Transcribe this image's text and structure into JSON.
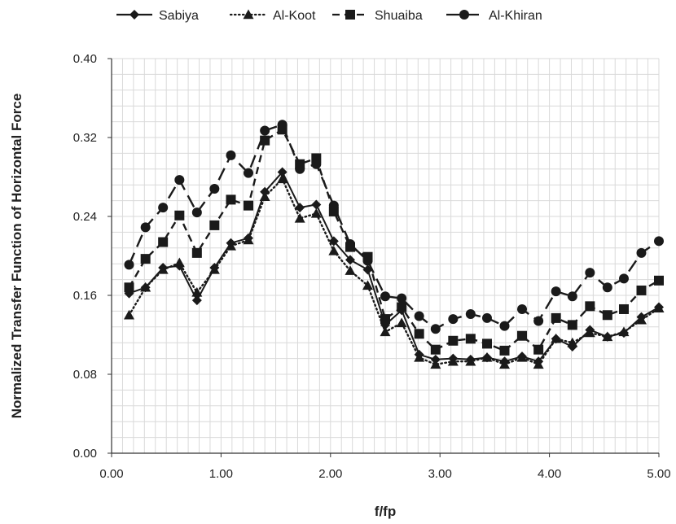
{
  "chart_data": {
    "type": "line",
    "title": "",
    "xlabel": "f/fp",
    "ylabel": "Normalized Transfer Function of Horizontal Force",
    "xlim": [
      0,
      5
    ],
    "ylim": [
      0,
      0.4
    ],
    "x_ticks": [
      "0.00",
      "1.00",
      "2.00",
      "3.00",
      "4.00",
      "5.00"
    ],
    "y_ticks": [
      "0.00",
      "0.08",
      "0.16",
      "0.24",
      "0.32",
      "0.40"
    ],
    "grid": true,
    "legend_position": "top",
    "series": [
      {
        "name": "Sabiya",
        "color": "#1a1a1a",
        "line_style": "solid",
        "marker": "diamond",
        "x": [
          0.16,
          0.31,
          0.47,
          0.62,
          0.78,
          0.94,
          1.09,
          1.25,
          1.4,
          1.56,
          1.72,
          1.87,
          2.03,
          2.18,
          2.34,
          2.5,
          2.65,
          2.81,
          2.96,
          3.12,
          3.28,
          3.43,
          3.59,
          3.75,
          3.9,
          4.06,
          4.21,
          4.37,
          4.53,
          4.68,
          4.84,
          5.0
        ],
        "y": [
          0.162,
          0.168,
          0.188,
          0.19,
          0.155,
          0.188,
          0.213,
          0.218,
          0.265,
          0.285,
          0.249,
          0.252,
          0.215,
          0.196,
          0.186,
          0.13,
          0.145,
          0.1,
          0.095,
          0.096,
          0.095,
          0.097,
          0.093,
          0.098,
          0.093,
          0.116,
          0.108,
          0.125,
          0.118,
          0.122,
          0.138,
          0.148
        ]
      },
      {
        "name": "Al-Koot",
        "color": "#1a1a1a",
        "line_style": "dotted",
        "marker": "triangle",
        "x": [
          0.16,
          0.31,
          0.47,
          0.62,
          0.78,
          0.94,
          1.09,
          1.25,
          1.4,
          1.56,
          1.72,
          1.87,
          2.03,
          2.18,
          2.34,
          2.5,
          2.65,
          2.81,
          2.96,
          3.12,
          3.28,
          3.43,
          3.59,
          3.75,
          3.9,
          4.06,
          4.21,
          4.37,
          4.53,
          4.68,
          4.84,
          5.0
        ],
        "y": [
          0.14,
          0.168,
          0.186,
          0.193,
          0.163,
          0.186,
          0.21,
          0.216,
          0.26,
          0.278,
          0.238,
          0.243,
          0.205,
          0.185,
          0.17,
          0.123,
          0.132,
          0.097,
          0.09,
          0.093,
          0.093,
          0.097,
          0.09,
          0.097,
          0.09,
          0.116,
          0.112,
          0.122,
          0.118,
          0.123,
          0.135,
          0.147
        ]
      },
      {
        "name": "Shuaiba",
        "color": "#1a1a1a",
        "line_style": "dashed",
        "marker": "square",
        "x": [
          0.16,
          0.31,
          0.47,
          0.62,
          0.78,
          0.94,
          1.09,
          1.25,
          1.4,
          1.56,
          1.72,
          1.87,
          2.03,
          2.18,
          2.34,
          2.5,
          2.65,
          2.81,
          2.96,
          3.12,
          3.28,
          3.43,
          3.59,
          3.75,
          3.9,
          4.06,
          4.21,
          4.37,
          4.53,
          4.68,
          4.84,
          5.0
        ],
        "y": [
          0.168,
          0.197,
          0.214,
          0.241,
          0.203,
          0.231,
          0.257,
          0.251,
          0.317,
          0.328,
          0.293,
          0.299,
          0.245,
          0.209,
          0.199,
          0.136,
          0.148,
          0.121,
          0.105,
          0.114,
          0.116,
          0.111,
          0.104,
          0.119,
          0.105,
          0.137,
          0.13,
          0.149,
          0.14,
          0.146,
          0.165,
          0.175
        ]
      },
      {
        "name": "Al-Khiran",
        "color": "#1a1a1a",
        "line_style": "longdash",
        "marker": "circle",
        "x": [
          0.16,
          0.31,
          0.47,
          0.62,
          0.78,
          0.94,
          1.09,
          1.25,
          1.4,
          1.56,
          1.72,
          1.87,
          2.03,
          2.18,
          2.34,
          2.5,
          2.65,
          2.81,
          2.96,
          3.12,
          3.28,
          3.43,
          3.59,
          3.75,
          3.9,
          4.06,
          4.21,
          4.37,
          4.53,
          4.68,
          4.84,
          5.0
        ],
        "y": [
          0.191,
          0.229,
          0.249,
          0.277,
          0.244,
          0.268,
          0.302,
          0.284,
          0.327,
          0.333,
          0.288,
          0.293,
          0.251,
          0.212,
          0.195,
          0.159,
          0.157,
          0.139,
          0.126,
          0.136,
          0.141,
          0.137,
          0.129,
          0.146,
          0.134,
          0.164,
          0.159,
          0.183,
          0.168,
          0.177,
          0.203,
          0.215
        ]
      }
    ]
  }
}
